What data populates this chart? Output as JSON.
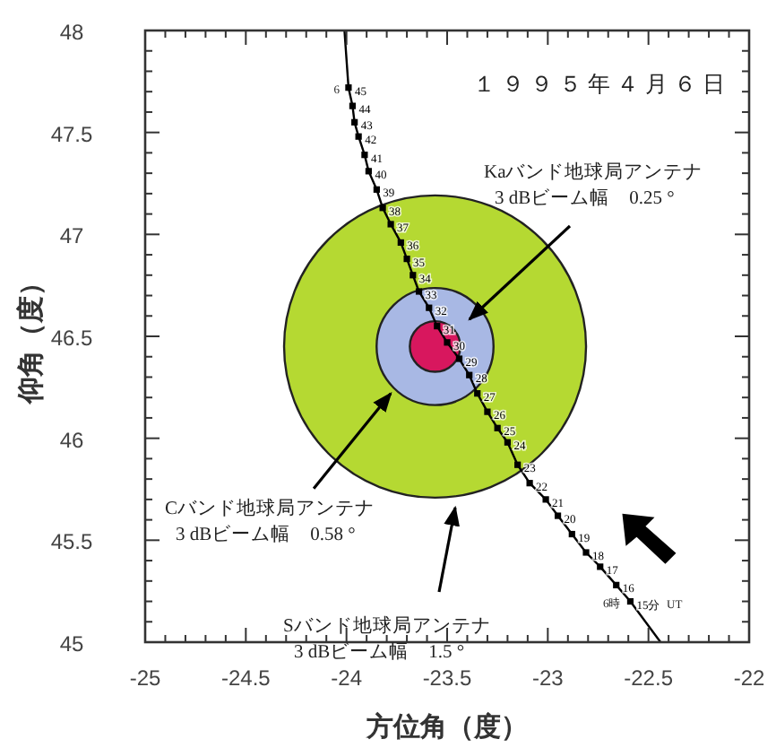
{
  "chart_data": {
    "type": "scatter",
    "xlabel": "方位角（度）",
    "ylabel": "仰角（度）",
    "xlim": [
      -25,
      -22
    ],
    "ylim": [
      45,
      48
    ],
    "xticks": [
      -25,
      {
        "value": -24.9,
        "label": null
      },
      {
        "value": -24.8,
        "label": null
      },
      {
        "value": -24.7,
        "label": null
      },
      {
        "value": -24.6,
        "label": null
      },
      -24.5,
      {
        "value": -24.4,
        "label": null
      },
      {
        "value": -24.3,
        "label": null
      },
      {
        "value": -24.2,
        "label": null
      },
      {
        "value": -24.1,
        "label": null
      },
      -24,
      {
        "value": -23.9,
        "label": null
      },
      {
        "value": -23.8,
        "label": null
      },
      {
        "value": -23.7,
        "label": null
      },
      {
        "value": -23.6,
        "label": null
      },
      -23.5,
      {
        "value": -23.4,
        "label": null
      },
      {
        "value": -23.3,
        "label": null
      },
      {
        "value": -23.2,
        "label": null
      },
      {
        "value": -23.1,
        "label": null
      },
      -23,
      {
        "value": -22.9,
        "label": null
      },
      {
        "value": -22.8,
        "label": null
      },
      {
        "value": -22.7,
        "label": null
      },
      {
        "value": -22.6,
        "label": null
      },
      -22.5,
      {
        "value": -22.4,
        "label": null
      },
      {
        "value": -22.3,
        "label": null
      },
      {
        "value": -22.2,
        "label": null
      },
      {
        "value": -22.1,
        "label": null
      },
      -22
    ],
    "yticks": [
      45,
      {
        "value": 45.1,
        "label": null
      },
      {
        "value": 45.2,
        "label": null
      },
      {
        "value": 45.3,
        "label": null
      },
      {
        "value": 45.4,
        "label": null
      },
      45.5,
      {
        "value": 45.6,
        "label": null
      },
      {
        "value": 45.7,
        "label": null
      },
      {
        "value": 45.8,
        "label": null
      },
      {
        "value": 45.9,
        "label": null
      },
      46,
      {
        "value": 46.1,
        "label": null
      },
      {
        "value": 46.2,
        "label": null
      },
      {
        "value": 46.3,
        "label": null
      },
      {
        "value": 46.4,
        "label": null
      },
      46.5,
      {
        "value": 46.6,
        "label": null
      },
      {
        "value": 46.7,
        "label": null
      },
      {
        "value": 46.8,
        "label": null
      },
      {
        "value": 46.9,
        "label": null
      },
      47,
      {
        "value": 47.1,
        "label": null
      },
      {
        "value": 47.2,
        "label": null
      },
      {
        "value": 47.3,
        "label": null
      },
      {
        "value": 47.4,
        "label": null
      },
      47.5,
      {
        "value": 47.6,
        "label": null
      },
      {
        "value": 47.7,
        "label": null
      },
      {
        "value": 47.8,
        "label": null
      },
      {
        "value": 47.9,
        "label": null
      },
      48
    ],
    "series": [
      {
        "type": "bubble",
        "x": [
          -23.56,
          -23.56,
          -23.56
        ],
        "values": [
          46.45,
          46.45,
          46.45
        ],
        "sizes": [
          1,
          0.15,
          0.028
        ],
        "colors": [
          "#b5d932",
          "#a8b8e4",
          "#d8175e"
        ]
      },
      {
        "type": "line",
        "color": "#000000",
        "marker": "none",
        "line_style": "solid",
        "x": [
          -24.01,
          -23.99,
          -23.97,
          -23.96,
          -23.94,
          -23.91,
          -23.89,
          -23.85,
          -23.82,
          -23.78,
          -23.73,
          -23.7,
          -23.67,
          -23.64,
          -23.59,
          -23.55,
          -23.5,
          -23.44,
          -23.39,
          -23.35,
          -23.3,
          -23.25,
          -23.2,
          -23.15,
          -23.09,
          -23.01,
          -22.95,
          -22.88,
          -22.81,
          -22.74,
          -22.66,
          -22.59,
          -22.44
        ],
        "values": [
          48,
          47.72,
          47.63,
          47.55,
          47.48,
          47.39,
          47.31,
          47.22,
          47.13,
          47.05,
          46.96,
          46.88,
          46.8,
          46.72,
          46.64,
          46.55,
          46.47,
          46.39,
          46.31,
          46.22,
          46.13,
          46.05,
          45.98,
          45.87,
          45.78,
          45.7,
          45.62,
          45.53,
          45.44,
          45.37,
          45.28,
          45.2,
          45
        ]
      },
      {
        "color": "#000000",
        "marker": "square",
        "x": [
          -23.99,
          -23.97,
          -23.96,
          -23.94,
          -23.91,
          -23.89,
          -23.85,
          -23.82,
          -23.78,
          -23.73,
          -23.7,
          -23.67,
          -23.64,
          -23.59,
          -23.55,
          -23.5,
          -23.44,
          -23.39,
          -23.35,
          -23.3,
          -23.25,
          -23.2,
          -23.15,
          -23.09,
          -23.01,
          -22.95,
          -22.88,
          -22.81,
          -22.74,
          -22.66,
          -22.59
        ],
        "values": [
          47.72,
          47.63,
          47.55,
          47.48,
          47.39,
          47.31,
          47.22,
          47.13,
          47.05,
          46.96,
          46.88,
          46.8,
          46.72,
          46.64,
          46.55,
          46.47,
          46.39,
          46.31,
          46.22,
          46.13,
          46.05,
          45.98,
          45.87,
          45.78,
          45.7,
          45.62,
          45.53,
          45.44,
          45.37,
          45.28,
          45.2
        ]
      }
    ],
    "annotations": [
      "１９９５年４月６日",
      "UT",
      "Kaバンド地球局アンテナ\n3 dBビーム幅　0.25 °",
      {
        "text": "Cバンド地球局アンテナ\n3 dBビーム幅　0.58 °",
        "x": -23.78,
        "y": 46.22
      },
      "Sバンド地球局アンテナ\n3 dBビーム幅　1.5 °",
      {
        "text": "6",
        "x": -23.99,
        "y": 47.72
      },
      {
        "text": "6時",
        "x": -22.59,
        "y": 45.2
      },
      {
        "text": "45",
        "x": -23.99,
        "y": 47.72
      },
      {
        "text": "44",
        "x": -23.97,
        "y": 47.63
      },
      {
        "text": "43",
        "x": -23.96,
        "y": 47.55
      },
      {
        "text": "42",
        "x": -23.94,
        "y": 47.48
      },
      {
        "text": "41",
        "x": -23.91,
        "y": 47.39
      },
      {
        "text": "40",
        "x": -23.89,
        "y": 47.31
      },
      {
        "text": "39",
        "x": -23.85,
        "y": 47.22
      },
      {
        "text": "38",
        "x": -23.82,
        "y": 47.13
      },
      {
        "text": "37",
        "x": -23.78,
        "y": 47.05
      },
      {
        "text": "36",
        "x": -23.73,
        "y": 46.96
      },
      {
        "text": "35",
        "x": -23.7,
        "y": 46.88
      },
      {
        "text": "34",
        "x": -23.67,
        "y": 46.8
      },
      {
        "text": "33",
        "x": -23.64,
        "y": 46.72
      },
      {
        "text": "32",
        "x": -23.59,
        "y": 46.64
      },
      {
        "text": "31",
        "x": -23.55,
        "y": 46.55
      },
      {
        "text": "30",
        "x": -23.5,
        "y": 46.47
      },
      {
        "text": "29",
        "x": -23.44,
        "y": 46.39
      },
      {
        "text": "28",
        "x": -23.39,
        "y": 46.31
      },
      {
        "text": "27",
        "x": -23.35,
        "y": 46.22
      },
      {
        "text": "26",
        "x": -23.3,
        "y": 46.13
      },
      {
        "text": "25",
        "x": -23.25,
        "y": 46.05
      },
      {
        "text": "24",
        "x": -23.2,
        "y": 45.98
      },
      {
        "text": "23",
        "x": -23.15,
        "y": 45.87
      },
      {
        "text": "22",
        "x": -23.09,
        "y": 45.78
      },
      {
        "text": "21",
        "x": -23.01,
        "y": 45.7
      },
      {
        "text": "20",
        "x": -22.95,
        "y": 45.62
      },
      {
        "text": "19",
        "x": -22.88,
        "y": 45.53
      },
      {
        "text": "18",
        "x": -22.81,
        "y": 45.44
      },
      {
        "text": "17",
        "x": -22.74,
        "y": 45.37
      },
      {
        "text": "16",
        "x": -22.66,
        "y": 45.28
      },
      {
        "text": "15分",
        "x": -22.59,
        "y": 45.2
      }
    ]
  }
}
